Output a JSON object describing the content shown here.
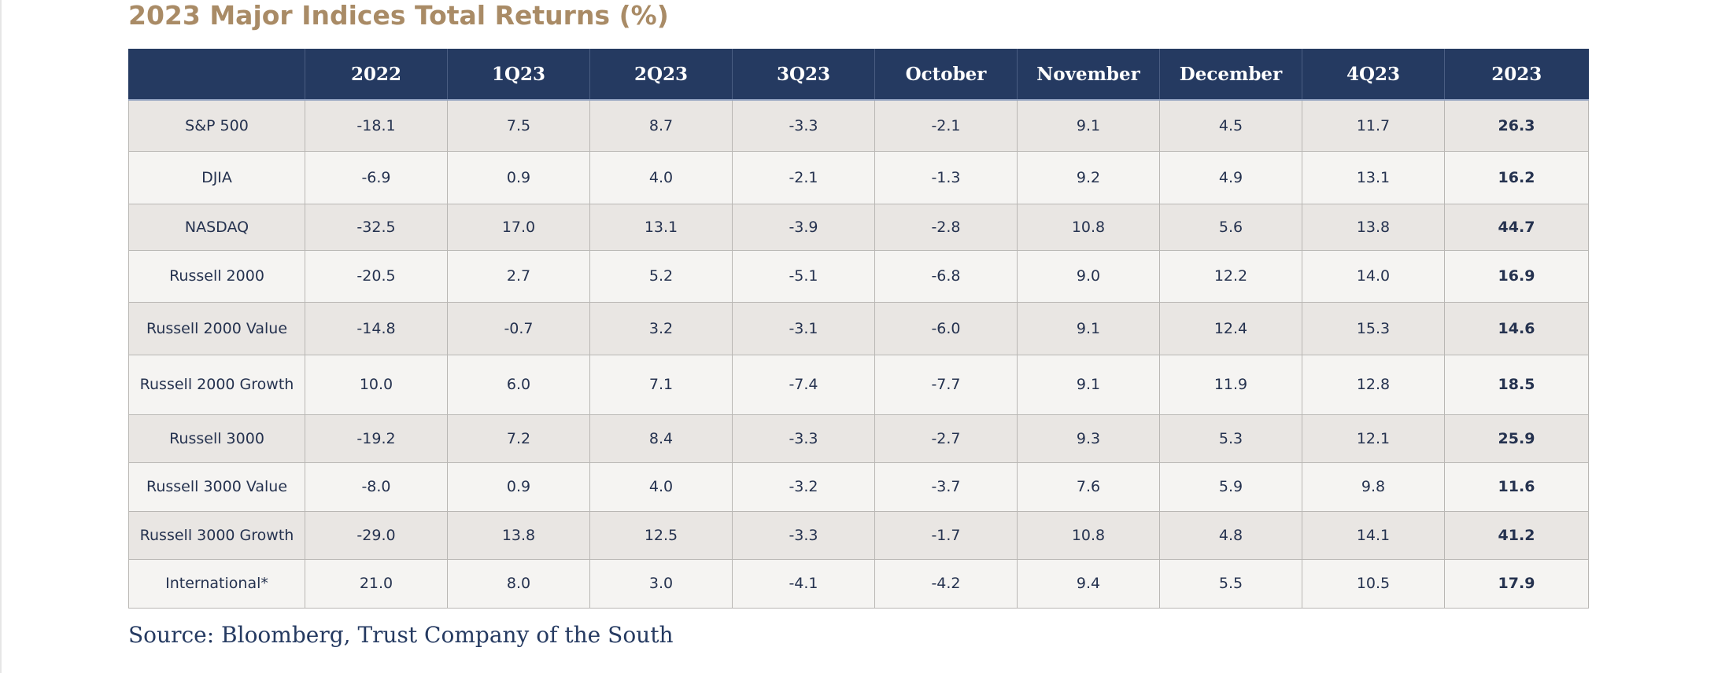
{
  "title": "2023 Major Indices Total Returns (%)",
  "table": {
    "columns": [
      "",
      "2022",
      "1Q23",
      "2Q23",
      "3Q23",
      "October",
      "November",
      "December",
      "4Q23",
      "2023"
    ],
    "rows": [
      {
        "label": "S&P 500",
        "values": [
          "-18.1",
          "7.5",
          "8.7",
          "-3.3",
          "-2.1",
          "9.1",
          "4.5",
          "11.7",
          "26.3"
        ]
      },
      {
        "label": "DJIA",
        "values": [
          "-6.9",
          "0.9",
          "4.0",
          "-2.1",
          "-1.3",
          "9.2",
          "4.9",
          "13.1",
          "16.2"
        ]
      },
      {
        "label": "NASDAQ",
        "values": [
          "-32.5",
          "17.0",
          "13.1",
          "-3.9",
          "-2.8",
          "10.8",
          "5.6",
          "13.8",
          "44.7"
        ]
      },
      {
        "label": "Russell 2000",
        "values": [
          "-20.5",
          "2.7",
          "5.2",
          "-5.1",
          "-6.8",
          "9.0",
          "12.2",
          "14.0",
          "16.9"
        ]
      },
      {
        "label": "Russell 2000 Value",
        "values": [
          "-14.8",
          "-0.7",
          "3.2",
          "-3.1",
          "-6.0",
          "9.1",
          "12.4",
          "15.3",
          "14.6"
        ]
      },
      {
        "label": "Russell 2000 Growth",
        "values": [
          "10.0",
          "6.0",
          "7.1",
          "-7.4",
          "-7.7",
          "9.1",
          "11.9",
          "12.8",
          "18.5"
        ]
      },
      {
        "label": "Russell 3000",
        "values": [
          "-19.2",
          "7.2",
          "8.4",
          "-3.3",
          "-2.7",
          "9.3",
          "5.3",
          "12.1",
          "25.9"
        ]
      },
      {
        "label": "Russell 3000 Value",
        "values": [
          "-8.0",
          "0.9",
          "4.0",
          "-3.2",
          "-3.7",
          "7.6",
          "5.9",
          "9.8",
          "11.6"
        ]
      },
      {
        "label": "Russell 3000 Growth",
        "values": [
          "-29.0",
          "13.8",
          "12.5",
          "-3.3",
          "-1.7",
          "10.8",
          "4.8",
          "14.1",
          "41.2"
        ]
      },
      {
        "label": "International*",
        "values": [
          "21.0",
          "8.0",
          "3.0",
          "-4.1",
          "-4.2",
          "9.4",
          "5.5",
          "10.5",
          "17.9"
        ]
      }
    ]
  },
  "source": "Source: Bloomberg, Trust Company of the South",
  "colors": {
    "title": "#a98b66",
    "header_bg": "#253a61",
    "row_odd": "#e9e6e3",
    "row_even": "#f5f4f2",
    "text": "#25324f"
  }
}
